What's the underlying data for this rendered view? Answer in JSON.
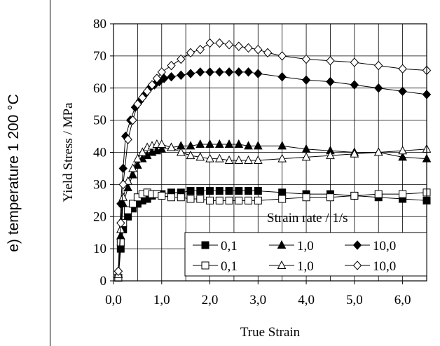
{
  "panel_label": "e) temperature 1 200 °C",
  "chart_data": {
    "type": "line",
    "xlabel": "True Strain",
    "ylabel": "Yield Stress / MPa",
    "xlim": [
      0,
      6.5
    ],
    "ylim": [
      0,
      80
    ],
    "x_ticks": [
      "0,0",
      "1,0",
      "2,0",
      "3,0",
      "4,0",
      "5,0",
      "6,0"
    ],
    "y_ticks": [
      "0",
      "10",
      "20",
      "30",
      "40",
      "50",
      "60",
      "70",
      "80"
    ],
    "grid": true,
    "legend_title": "Strain rate / 1/s",
    "legend_position": "bottom-right",
    "series": [
      {
        "name": "0,1",
        "marker": "square",
        "filled": true,
        "x": [
          0.1,
          0.15,
          0.2,
          0.3,
          0.4,
          0.5,
          0.6,
          0.7,
          0.8,
          0.9,
          1.0,
          1.2,
          1.4,
          1.6,
          1.8,
          2.0,
          2.2,
          2.4,
          2.6,
          2.8,
          3.0,
          3.5,
          4.0,
          4.5,
          5.0,
          5.5,
          6.0,
          6.5
        ],
        "y": [
          1,
          10,
          16,
          20,
          22.5,
          24,
          25,
          25.5,
          26.5,
          27,
          27,
          27.5,
          27.5,
          28,
          28,
          28,
          28,
          28,
          28,
          28,
          28,
          27.5,
          27,
          27,
          26.5,
          26,
          25.5,
          25
        ]
      },
      {
        "name": "1,0",
        "marker": "triangle",
        "filled": true,
        "x": [
          0.1,
          0.15,
          0.2,
          0.3,
          0.4,
          0.5,
          0.6,
          0.7,
          0.8,
          0.9,
          1.0,
          1.2,
          1.4,
          1.6,
          1.8,
          2.0,
          2.2,
          2.4,
          2.6,
          2.8,
          3.0,
          3.5,
          4.0,
          4.5,
          5.0,
          5.5,
          6.0,
          6.5
        ],
        "y": [
          2,
          14,
          24,
          29,
          33,
          36,
          38,
          39,
          40,
          40.5,
          41,
          41.5,
          42,
          42,
          42.5,
          42.5,
          42.5,
          42.5,
          42.5,
          42,
          42,
          42,
          41,
          40.5,
          40,
          40,
          38.5,
          38
        ]
      },
      {
        "name": "10,0",
        "marker": "diamond",
        "filled": true,
        "x": [
          0.1,
          0.15,
          0.2,
          0.25,
          0.35,
          0.45,
          0.55,
          0.65,
          0.75,
          0.85,
          0.95,
          1.05,
          1.2,
          1.4,
          1.6,
          1.8,
          2.0,
          2.2,
          2.4,
          2.6,
          2.8,
          3.0,
          3.5,
          4.0,
          4.5,
          5.0,
          5.5,
          6.0,
          6.5
        ],
        "y": [
          3,
          24,
          35,
          45,
          50,
          54,
          56,
          58,
          60,
          61,
          62,
          63,
          63.5,
          64,
          64.5,
          65,
          65,
          65,
          65,
          65,
          65,
          64.5,
          63.5,
          62.5,
          62,
          61,
          60,
          59,
          58
        ]
      },
      {
        "name": "0,1",
        "marker": "square",
        "filled": false,
        "x": [
          0.1,
          0.15,
          0.2,
          0.3,
          0.4,
          0.5,
          0.6,
          0.7,
          0.8,
          0.9,
          1.0,
          1.2,
          1.4,
          1.6,
          1.8,
          2.0,
          2.2,
          2.4,
          2.6,
          2.8,
          3.0,
          3.5,
          4.0,
          4.5,
          5.0,
          5.5,
          6.0,
          6.5
        ],
        "y": [
          1,
          12,
          18,
          22,
          24,
          26,
          27,
          27.5,
          27,
          27,
          26.5,
          26,
          26,
          25.5,
          25.5,
          25,
          25,
          25,
          25,
          25,
          25,
          25.5,
          26,
          26,
          26.5,
          27,
          27,
          27.5
        ]
      },
      {
        "name": "1,0",
        "marker": "triangle",
        "filled": false,
        "x": [
          0.1,
          0.15,
          0.2,
          0.3,
          0.4,
          0.5,
          0.6,
          0.7,
          0.8,
          0.9,
          1.0,
          1.2,
          1.4,
          1.6,
          1.8,
          2.0,
          2.2,
          2.4,
          2.6,
          2.8,
          3.0,
          3.5,
          4.0,
          4.5,
          5.0,
          5.5,
          6.0,
          6.5
        ],
        "y": [
          2,
          16,
          26,
          31,
          35,
          38,
          40,
          41.5,
          42,
          42.5,
          42.5,
          41.5,
          40,
          39,
          38.5,
          38,
          38,
          37.5,
          37.5,
          37.5,
          37.5,
          38,
          38.5,
          39,
          39.5,
          40,
          40.5,
          41
        ]
      },
      {
        "name": "10,0",
        "marker": "diamond",
        "filled": false,
        "x": [
          0.1,
          0.15,
          0.2,
          0.3,
          0.4,
          0.5,
          0.6,
          0.7,
          0.8,
          0.9,
          1.0,
          1.2,
          1.4,
          1.6,
          1.8,
          2.0,
          2.2,
          2.4,
          2.6,
          2.8,
          3.0,
          3.2,
          3.5,
          4.0,
          4.5,
          5.0,
          5.5,
          6.0,
          6.5
        ],
        "y": [
          3,
          18,
          30,
          44,
          50,
          55,
          57,
          59,
          61,
          63,
          65,
          67,
          69,
          71,
          72,
          74,
          74,
          73.5,
          73,
          72.5,
          72,
          71,
          70,
          69,
          68.5,
          68,
          67,
          66,
          65.5
        ]
      }
    ]
  }
}
